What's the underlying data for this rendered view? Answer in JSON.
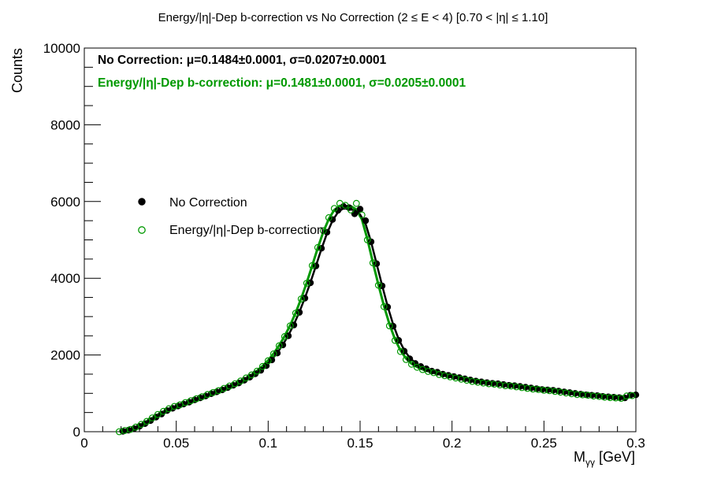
{
  "chart_data": {
    "type": "scatter",
    "title": "Energy/|η|-Dep b-correction vs No Correction   (2 ≤ E < 4)   [0.70 < |η| ≤ 1.10]",
    "xlabel": "M",
    "xlabel_sub": "γγ",
    "xlabel_unit": " [GeV]",
    "ylabel": "Counts",
    "xlim": [
      0,
      0.3
    ],
    "ylim": [
      0,
      10000
    ],
    "x_ticks": [
      {
        "value": 0,
        "label": "0"
      },
      {
        "value": 0.05,
        "label": "0.05"
      },
      {
        "value": 0.1,
        "label": "0.1"
      },
      {
        "value": 0.15,
        "label": "0.15"
      },
      {
        "value": 0.2,
        "label": "0.2"
      },
      {
        "value": 0.25,
        "label": "0.25"
      },
      {
        "value": 0.3,
        "label": "0.3"
      }
    ],
    "y_ticks": [
      {
        "value": 0,
        "label": "0"
      },
      {
        "value": 2000,
        "label": "2000"
      },
      {
        "value": 4000,
        "label": "4000"
      },
      {
        "value": 6000,
        "label": "6000"
      },
      {
        "value": 8000,
        "label": "8000"
      },
      {
        "value": 10000,
        "label": "10000"
      }
    ],
    "grid": false,
    "legend_position": "middle-left",
    "annotations": [
      {
        "text": "No Correction: μ=0.1484±0.0001, σ=0.0207±0.0001",
        "color": "#000000"
      },
      {
        "text": "Energy/|η|-Dep b-correction: μ=0.1481±0.0001, σ=0.0205±0.0001",
        "color": "#009900"
      }
    ],
    "series": [
      {
        "name": "No Correction",
        "color": "#000000",
        "marker": "filled-circle",
        "fit": {
          "mean": 0.1484,
          "sigma": 0.0207
        },
        "x": [
          0.021,
          0.024,
          0.027,
          0.03,
          0.033,
          0.036,
          0.039,
          0.042,
          0.045,
          0.048,
          0.051,
          0.054,
          0.057,
          0.06,
          0.063,
          0.066,
          0.069,
          0.072,
          0.075,
          0.078,
          0.081,
          0.084,
          0.087,
          0.09,
          0.093,
          0.096,
          0.099,
          0.102,
          0.105,
          0.108,
          0.111,
          0.114,
          0.117,
          0.12,
          0.123,
          0.126,
          0.129,
          0.132,
          0.135,
          0.138,
          0.141,
          0.144,
          0.147,
          0.15,
          0.153,
          0.156,
          0.159,
          0.162,
          0.165,
          0.168,
          0.171,
          0.174,
          0.177,
          0.18,
          0.183,
          0.186,
          0.189,
          0.192,
          0.195,
          0.198,
          0.201,
          0.204,
          0.207,
          0.21,
          0.213,
          0.216,
          0.219,
          0.222,
          0.225,
          0.228,
          0.231,
          0.234,
          0.237,
          0.24,
          0.243,
          0.246,
          0.249,
          0.252,
          0.255,
          0.258,
          0.261,
          0.264,
          0.267,
          0.27,
          0.273,
          0.276,
          0.279,
          0.282,
          0.285,
          0.288,
          0.291,
          0.294,
          0.297,
          0.3
        ],
        "y": [
          10,
          40,
          80,
          140,
          210,
          290,
          380,
          460,
          550,
          610,
          670,
          720,
          770,
          830,
          880,
          930,
          990,
          1040,
          1090,
          1150,
          1210,
          1270,
          1340,
          1420,
          1510,
          1600,
          1720,
          1870,
          2050,
          2260,
          2500,
          2780,
          3110,
          3480,
          3880,
          4320,
          4780,
          5200,
          5530,
          5770,
          5870,
          5840,
          5680,
          5800,
          5500,
          4950,
          4380,
          3800,
          3250,
          2750,
          2380,
          2100,
          1900,
          1780,
          1700,
          1640,
          1580,
          1550,
          1500,
          1470,
          1440,
          1410,
          1380,
          1350,
          1320,
          1300,
          1280,
          1260,
          1250,
          1230,
          1210,
          1200,
          1180,
          1160,
          1140,
          1120,
          1100,
          1090,
          1080,
          1060,
          1040,
          1020,
          1000,
          980,
          960,
          950,
          940,
          920,
          910,
          900,
          890,
          880,
          950,
          960
        ]
      },
      {
        "name": "Energy/|η|-Dep b-correction",
        "color": "#009900",
        "marker": "open-circle",
        "fit": {
          "mean": 0.1481,
          "sigma": 0.0205
        },
        "x": [
          0.019,
          0.022,
          0.025,
          0.028,
          0.031,
          0.034,
          0.037,
          0.04,
          0.043,
          0.046,
          0.049,
          0.052,
          0.055,
          0.058,
          0.061,
          0.064,
          0.067,
          0.07,
          0.073,
          0.076,
          0.079,
          0.082,
          0.085,
          0.088,
          0.091,
          0.094,
          0.097,
          0.1,
          0.103,
          0.106,
          0.109,
          0.112,
          0.115,
          0.118,
          0.121,
          0.124,
          0.127,
          0.13,
          0.133,
          0.136,
          0.139,
          0.142,
          0.145,
          0.148,
          0.151,
          0.154,
          0.157,
          0.16,
          0.163,
          0.166,
          0.169,
          0.172,
          0.175,
          0.178,
          0.181,
          0.184,
          0.187,
          0.19,
          0.193,
          0.196,
          0.199,
          0.202,
          0.205,
          0.208,
          0.211,
          0.214,
          0.217,
          0.22,
          0.223,
          0.226,
          0.229,
          0.232,
          0.235,
          0.238,
          0.241,
          0.244,
          0.247,
          0.25,
          0.253,
          0.256,
          0.259,
          0.262,
          0.265,
          0.268,
          0.271,
          0.274,
          0.277,
          0.28,
          0.283,
          0.286,
          0.289,
          0.292,
          0.295,
          0.298
        ],
        "y": [
          0,
          30,
          60,
          120,
          190,
          270,
          360,
          450,
          530,
          600,
          660,
          700,
          760,
          810,
          860,
          910,
          970,
          1020,
          1070,
          1130,
          1190,
          1250,
          1320,
          1400,
          1480,
          1580,
          1700,
          1850,
          2030,
          2240,
          2480,
          2760,
          3090,
          3460,
          3870,
          4330,
          4800,
          5240,
          5580,
          5820,
          5950,
          5900,
          5780,
          5950,
          5650,
          5000,
          4400,
          3820,
          3260,
          2760,
          2380,
          2090,
          1880,
          1760,
          1680,
          1620,
          1570,
          1540,
          1490,
          1460,
          1430,
          1400,
          1370,
          1340,
          1310,
          1290,
          1270,
          1250,
          1240,
          1220,
          1200,
          1190,
          1170,
          1150,
          1130,
          1110,
          1100,
          1080,
          1070,
          1050,
          1030,
          1010,
          990,
          970,
          960,
          950,
          930,
          920,
          900,
          890,
          880,
          870,
          930,
          940
        ]
      }
    ]
  }
}
